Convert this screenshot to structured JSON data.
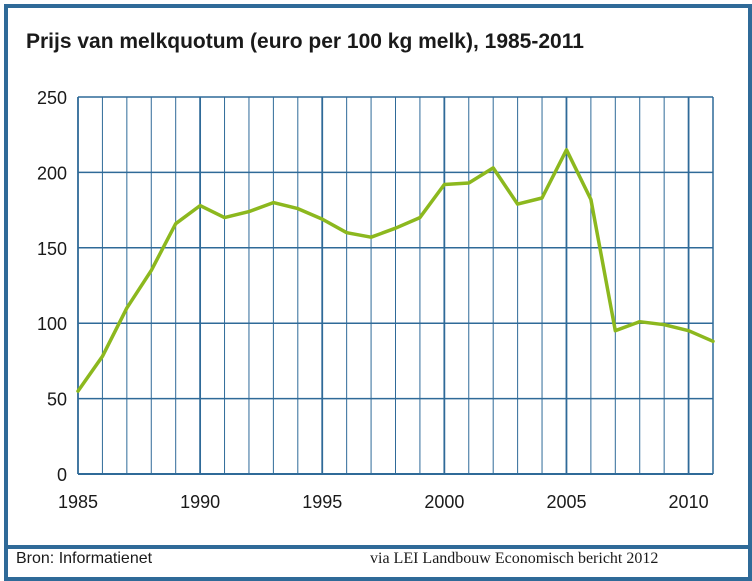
{
  "title": "Prijs van melkquotum (euro per 100 kg melk), 1985-2011",
  "footer": {
    "source": "Bron: Informatienet",
    "via": "via LEI Landbouw Economisch bericht 2012"
  },
  "colors": {
    "frame": "#2f6a98",
    "grid": "#2f6a98",
    "line": "#8cb81e"
  },
  "chart_data": {
    "type": "line",
    "title": "Prijs van melkquotum (euro per 100 kg melk), 1985-2011",
    "xlabel": "",
    "ylabel": "",
    "xlim": [
      1985,
      2011
    ],
    "ylim": [
      0,
      250
    ],
    "x_ticks": [
      1985,
      1990,
      1995,
      2000,
      2005,
      2010
    ],
    "y_ticks": [
      0,
      50,
      100,
      150,
      200,
      250
    ],
    "grid": true,
    "series": [
      {
        "x": [
          1985,
          1986,
          1987,
          1988,
          1989,
          1990,
          1991,
          1992,
          1993,
          1994,
          1995,
          1996,
          1997,
          1998,
          1999,
          2000,
          2001,
          2002,
          2003,
          2004,
          2005,
          2006,
          2007,
          2008,
          2009,
          2010,
          2011
        ],
        "y": [
          55,
          78,
          110,
          135,
          166,
          178,
          170,
          174,
          180,
          176,
          169,
          160,
          157,
          163,
          170,
          192,
          193,
          203,
          179,
          183,
          215,
          182,
          95,
          101,
          99,
          95,
          88
        ]
      }
    ]
  }
}
